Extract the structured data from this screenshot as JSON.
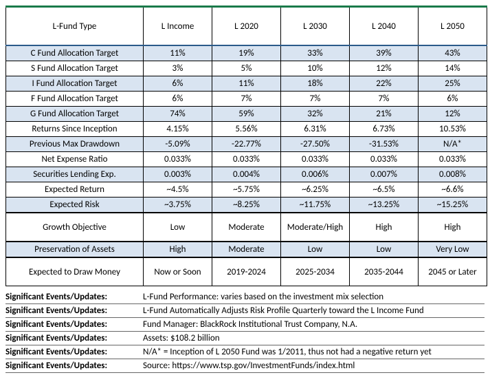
{
  "table": {
    "header_row_label": "L-Fund Type",
    "columns": [
      "L Income",
      "L 2020",
      "L 2030",
      "L 2040",
      "L 2050"
    ],
    "rows": [
      {
        "label": "C Fund Allocation Target",
        "cells": [
          "11%",
          "19%",
          "33%",
          "39%",
          "43%"
        ],
        "shade": true
      },
      {
        "label": "S Fund Allocation Target",
        "cells": [
          "3%",
          "5%",
          "10%",
          "12%",
          "14%"
        ],
        "shade": false
      },
      {
        "label": "I Fund Allocation Target",
        "cells": [
          "6%",
          "11%",
          "18%",
          "22%",
          "25%"
        ],
        "shade": true
      },
      {
        "label": "F Fund Allocation Target",
        "cells": [
          "6%",
          "7%",
          "7%",
          "7%",
          "6%"
        ],
        "shade": false
      },
      {
        "label": "G Fund Allocation Target",
        "cells": [
          "74%",
          "59%",
          "32%",
          "21%",
          "12%"
        ],
        "shade": true
      },
      {
        "label": "Returns Since Inception",
        "cells": [
          "4.15%",
          "5.56%",
          "6.31%",
          "6.73%",
          "10.53%"
        ],
        "shade": false
      },
      {
        "label": "Previous Max Drawdown",
        "cells": [
          "-5.09%",
          "-22.77%",
          "-27.50%",
          "-31.53%",
          "N/A*"
        ],
        "shade": true
      },
      {
        "label": "Net Expense Ratio",
        "cells": [
          "0.033%",
          "0.033%",
          "0.033%",
          "0.033%",
          "0.033%"
        ],
        "shade": false
      },
      {
        "label": "Securities Lending Exp.",
        "cells": [
          "0.003%",
          "0.004%",
          "0.006%",
          "0.007%",
          "0.008%"
        ],
        "shade": true
      },
      {
        "label": "Expected Return",
        "cells": [
          "~4.5%",
          "~5.75%",
          "~6.25%",
          "~6.5%",
          "~6.6%"
        ],
        "shade": false
      },
      {
        "label": "Expected Risk",
        "cells": [
          "~3.75%",
          "~8.25%",
          "~11.75%",
          "~13.25%",
          "~15.25%"
        ],
        "shade": true
      },
      {
        "label": "Growth Objective",
        "cells": [
          "Low",
          "Moderate",
          "Moderate/High",
          "High",
          "High"
        ],
        "shade": false,
        "tall": true,
        "sepabove": true
      },
      {
        "label": "Preservation of Assets",
        "cells": [
          "High",
          "Moderate",
          "Low",
          "Low",
          "Very Low"
        ],
        "shade": true,
        "sepabove": true
      },
      {
        "label": "Expected to Draw Money",
        "cells": [
          "Now or Soon",
          "2019-2024",
          "2025-2034",
          "2035-2044",
          "2045 or Later"
        ],
        "shade": false,
        "tall": true,
        "sepabove": true
      }
    ]
  },
  "events": {
    "label": "Significant Events/Updates:",
    "items": [
      "L-Fund Performance: varies based on the investment mix selection",
      "L-Fund Automatically Adjusts Risk Profile Quarterly toward the L Income Fund",
      "Fund Manager: BlackRock Institutional Trust Company, N.A.",
      "Assets: $108.2 billion",
      "N/A* = Inception of L 2050 Fund was 1/2011, thus not had a negative return yet",
      "Source: https://www.tsp.gov/InvestmentFunds/index.html"
    ]
  },
  "style": {
    "shade_color": "#d9e4f1",
    "header_top_border": "#1a7a4a",
    "header_bottom_border": "#2a5a8a"
  }
}
